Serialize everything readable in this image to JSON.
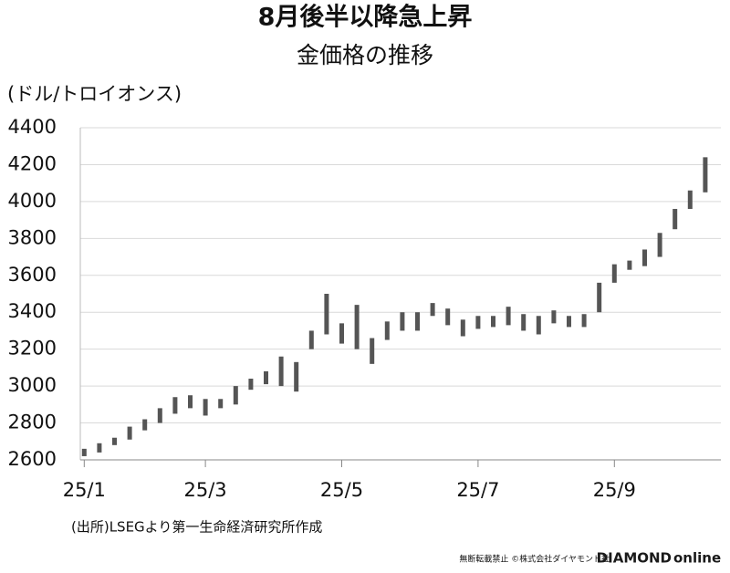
{
  "chart_data": {
    "type": "range_bar",
    "title": "8月後半以降急上昇",
    "subtitle": "金価格の推移",
    "y_label": "(ドル/トロイオンス)",
    "source": "(出所)LSEGより第一生命経済研究所作成",
    "footer": {
      "notice": "無断転載禁止 ©株式会社ダイヤモンド社",
      "brand": "DIAMOND",
      "brand_suffix": "online"
    },
    "categories": [
      "25/1",
      null,
      null,
      null,
      null,
      null,
      null,
      null,
      "25/3",
      null,
      null,
      null,
      null,
      null,
      null,
      null,
      null,
      "25/5",
      null,
      null,
      null,
      null,
      null,
      null,
      null,
      null,
      "25/7",
      null,
      null,
      null,
      null,
      null,
      null,
      null,
      null,
      "25/9",
      null,
      null,
      null,
      null,
      null,
      null
    ],
    "low": [
      2620,
      2640,
      2680,
      2710,
      2760,
      2800,
      2850,
      2880,
      2840,
      2880,
      2900,
      2980,
      3010,
      3000,
      2970,
      3200,
      3280,
      3230,
      3200,
      3120,
      3250,
      3300,
      3300,
      3380,
      3330,
      3270,
      3310,
      3320,
      3330,
      3300,
      3280,
      3340,
      3320,
      3320,
      3400,
      3560,
      3630,
      3650,
      3700,
      3850,
      3960,
      4050
    ],
    "high": [
      2660,
      2690,
      2720,
      2780,
      2820,
      2880,
      2940,
      2950,
      2930,
      2930,
      3000,
      3040,
      3080,
      3160,
      3130,
      3300,
      3500,
      3340,
      3440,
      3260,
      3350,
      3400,
      3400,
      3450,
      3420,
      3360,
      3380,
      3380,
      3430,
      3390,
      3380,
      3410,
      3380,
      3390,
      3560,
      3660,
      3680,
      3740,
      3830,
      3960,
      4060,
      4240
    ],
    "color": "#555555",
    "ylim": [
      2600,
      4400
    ],
    "yticks": [
      2600,
      2800,
      3000,
      3200,
      3400,
      3600,
      3800,
      4000,
      4200,
      4400
    ],
    "grid": true
  }
}
